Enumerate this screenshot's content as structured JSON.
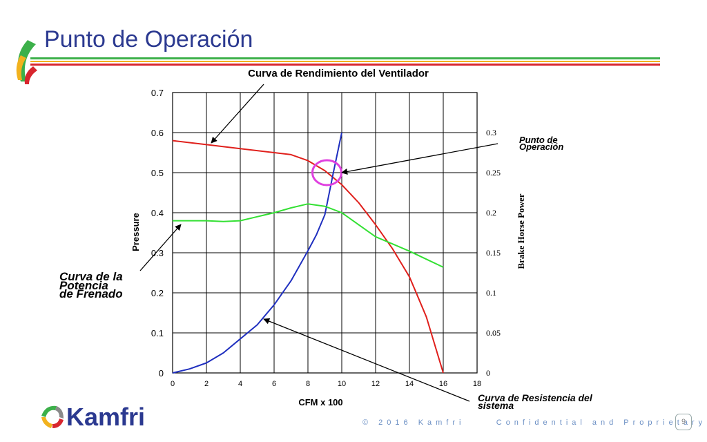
{
  "slide": {
    "title": "Punto de Operación",
    "footer_left": "© 2016 Kamfri",
    "footer_right": "Confidential and Proprietary",
    "page_number": "9",
    "logo_text": "Kamfri"
  },
  "colors": {
    "fan_curve": "#e0201c",
    "power_curve": "#33e033",
    "system_curve": "#1f2fbf",
    "marker": "#e040e0",
    "title": "#2b3990",
    "logo": "#2b3990"
  },
  "annotations": {
    "fan_curve_label": "Curva de Rendimiento del Ventilador",
    "operating_point_label_1": "Punto de",
    "operating_point_label_2": "Operación",
    "power_label_1": "Curva de la",
    "power_label_2": "Potencia",
    "power_label_3": "de Frenado",
    "system_label_1": "Curva de Resistencia del",
    "system_label_2": "sistema"
  },
  "chart_data": {
    "type": "line",
    "xlabel": "CFM x 100",
    "ylabel": "Pressure",
    "y2label": "Brake Horse Power",
    "xlim": [
      0,
      18
    ],
    "ylim": [
      0,
      0.7
    ],
    "y2lim": [
      0,
      0.35
    ],
    "x_ticks": [
      "0",
      "2",
      "4",
      "6",
      "8",
      "10",
      "12",
      "14",
      "16",
      "18"
    ],
    "y_ticks": [
      "0",
      "0.1",
      "0.2",
      "0.3",
      "0.4",
      "0.5",
      "0.6",
      "0.7"
    ],
    "y2_ticks": [
      "0",
      "0.05",
      "0.1",
      "0.15",
      "0.2",
      "0.25",
      "0.3"
    ],
    "grid": true,
    "series": [
      {
        "axis": "left",
        "x": [
          0,
          2,
          4,
          6,
          7,
          8,
          9,
          10,
          11,
          12,
          13,
          14,
          14.5,
          15,
          16
        ],
        "y": [
          0.58,
          0.57,
          0.56,
          0.55,
          0.545,
          0.53,
          0.505,
          0.47,
          0.425,
          0.37,
          0.31,
          0.24,
          0.19,
          0.14,
          0
        ]
      },
      {
        "axis": "left",
        "x": [
          0,
          1,
          2,
          3,
          4,
          5,
          6,
          7,
          8,
          8.5,
          9,
          9.5,
          10
        ],
        "y": [
          0,
          0.01,
          0.025,
          0.05,
          0.085,
          0.12,
          0.17,
          0.23,
          0.305,
          0.345,
          0.395,
          0.5,
          0.6
        ]
      },
      {
        "axis": "right",
        "x": [
          0,
          1,
          2,
          3,
          4,
          5,
          6,
          7,
          8,
          9,
          10,
          11,
          12,
          13,
          14,
          15,
          16
        ],
        "y": [
          0.19,
          0.19,
          0.19,
          0.189,
          0.19,
          0.195,
          0.2,
          0.206,
          0.211,
          0.208,
          0.2,
          0.185,
          0.17,
          0.161,
          0.152,
          0.142,
          0.132
        ]
      }
    ],
    "operating_point": {
      "x": 9,
      "y": 0.5
    }
  }
}
